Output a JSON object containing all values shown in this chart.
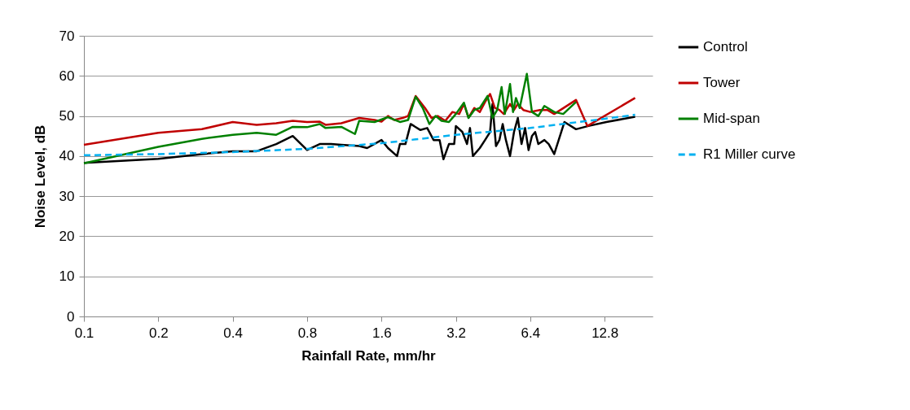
{
  "chart_data": {
    "type": "line",
    "xlabel": "Rainfall Rate, mm/hr",
    "ylabel": "Noise Level, dB",
    "log": "x",
    "grid": "y",
    "legend": "right",
    "marker": "none",
    "xlim": [
      0.1,
      20
    ],
    "xticks": [
      0.1,
      0.2,
      0.4,
      0.8,
      1.6,
      3.2,
      6.4,
      12.8
    ],
    "ylim": [
      0,
      70
    ],
    "yticks": [
      0,
      10,
      20,
      30,
      40,
      50,
      60,
      70
    ],
    "series": [
      {
        "name": "Control",
        "color": "#000000",
        "line_style": "solid",
        "x": [
          0.1,
          0.2,
          0.3,
          0.4,
          0.5,
          0.6,
          0.7,
          0.8,
          0.9,
          1.0,
          1.1,
          1.3,
          1.4,
          1.6,
          1.7,
          1.85,
          1.9,
          2.0,
          2.1,
          2.3,
          2.45,
          2.6,
          2.75,
          2.85,
          3.0,
          3.15,
          3.2,
          3.4,
          3.55,
          3.65,
          3.75,
          4.0,
          4.2,
          4.4,
          4.5,
          4.65,
          4.8,
          4.95,
          5.1,
          5.3,
          5.5,
          5.7,
          5.9,
          6.1,
          6.3,
          6.5,
          6.7,
          6.9,
          7.3,
          7.6,
          8.0,
          8.8,
          9.8,
          11,
          13,
          17
        ],
        "values": [
          38.3,
          39.3,
          40.5,
          41.2,
          41.2,
          43,
          45,
          41.5,
          43,
          43,
          42.8,
          42.5,
          42,
          44,
          42,
          40,
          43,
          43,
          48,
          46.5,
          47,
          44,
          44,
          39.2,
          43,
          43,
          47.5,
          46,
          43,
          47,
          40,
          42,
          44,
          46,
          53,
          42.5,
          44,
          48,
          44,
          40,
          46,
          49.5,
          43,
          47,
          41.5,
          45,
          46,
          43,
          44,
          43,
          40.5,
          48.5,
          46.7,
          47.5,
          48.5,
          49.8
        ]
      },
      {
        "name": "Tower",
        "color": "#c00000",
        "line_style": "solid",
        "x": [
          0.1,
          0.2,
          0.3,
          0.4,
          0.5,
          0.6,
          0.7,
          0.8,
          0.9,
          0.95,
          1.1,
          1.3,
          1.5,
          1.6,
          1.7,
          1.8,
          1.95,
          2.05,
          2.2,
          2.4,
          2.55,
          2.7,
          2.9,
          3.1,
          3.3,
          3.45,
          3.6,
          3.8,
          4.0,
          4.2,
          4.4,
          4.6,
          4.8,
          5.0,
          5.3,
          5.5,
          5.7,
          6.0,
          6.4,
          7.0,
          7.5,
          8.0,
          9.8,
          10.9,
          17
        ],
        "values": [
          42.8,
          45.8,
          46.7,
          48.5,
          47.8,
          48.2,
          48.8,
          48.5,
          48.6,
          47.8,
          48.2,
          49.5,
          49,
          48.6,
          50,
          49,
          49.5,
          50,
          55,
          52,
          49.5,
          50,
          48.8,
          51,
          50.5,
          53,
          49.6,
          52,
          51,
          53.5,
          55.5,
          52,
          51.5,
          50.5,
          53,
          51.5,
          53,
          51.5,
          51,
          51.5,
          51.5,
          50.5,
          54,
          47.5,
          54.5
        ]
      },
      {
        "name": "Mid-span",
        "color": "#008000",
        "line_style": "solid",
        "x": [
          0.1,
          0.2,
          0.3,
          0.4,
          0.5,
          0.6,
          0.7,
          0.8,
          0.9,
          0.95,
          1.1,
          1.25,
          1.3,
          1.5,
          1.7,
          1.9,
          2.05,
          2.2,
          2.35,
          2.5,
          2.65,
          2.8,
          3.0,
          3.2,
          3.45,
          3.6,
          3.8,
          4.0,
          4.3,
          4.5,
          4.7,
          4.9,
          5.05,
          5.3,
          5.45,
          5.6,
          5.8,
          6.2,
          6.5,
          6.9,
          7.3,
          8.0,
          8.7,
          9.8
        ],
        "values": [
          38.2,
          42.3,
          44.3,
          45.3,
          45.8,
          45.3,
          47.3,
          47.2,
          48,
          47,
          47.3,
          45.5,
          48.8,
          48.5,
          49.7,
          48.5,
          49,
          54.8,
          52,
          48,
          50,
          48.8,
          48.5,
          50.5,
          53.3,
          49.5,
          51.5,
          52,
          55,
          49.5,
          51.5,
          57.2,
          50.5,
          58,
          51,
          54.5,
          52,
          60.5,
          51,
          50,
          52.5,
          51,
          50.5,
          53.5
        ]
      },
      {
        "name": "R1 Miller curve",
        "color": "#00b0f0",
        "line_style": "dashed",
        "x": [
          0.1,
          0.2,
          0.4,
          0.8,
          1.6,
          3.2,
          6.4,
          12.8,
          17
        ],
        "values": [
          40.2,
          40.5,
          41,
          41.8,
          43.2,
          45.3,
          47,
          49.3,
          50.3
        ]
      }
    ]
  }
}
